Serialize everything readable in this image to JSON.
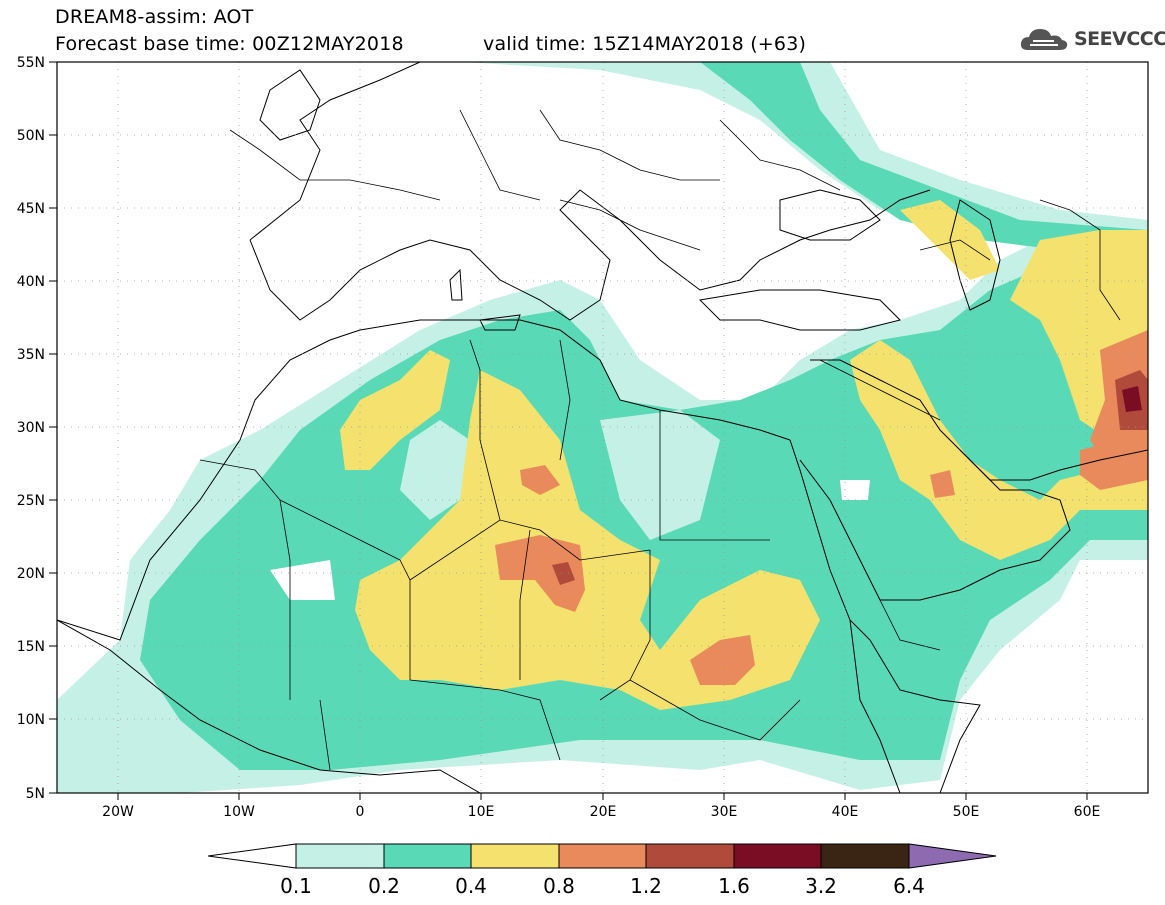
{
  "header": {
    "title": "DREAM8-assim: AOT",
    "base_time": "Forecast base time: 00Z12MAY2018",
    "valid_time": "valid time: 15Z14MAY2018 (+63)"
  },
  "logo": {
    "text": "SEEVCCC",
    "icon": "cloud-icon"
  },
  "axes": {
    "lat_labels": [
      "55N",
      "50N",
      "45N",
      "40N",
      "35N",
      "30N",
      "25N",
      "20N",
      "15N",
      "10N",
      "5N"
    ],
    "lon_labels": [
      "20W",
      "10W",
      "0",
      "10E",
      "20E",
      "30E",
      "40E",
      "50E",
      "60E"
    ],
    "lat_range": [
      5,
      55
    ],
    "lon_range": [
      -25,
      65
    ]
  },
  "colorbar": {
    "levels": [
      "0.1",
      "0.2",
      "0.4",
      "0.8",
      "1.2",
      "1.6",
      "3.2",
      "6.4"
    ],
    "colors": [
      "#ffffff",
      "#c4f0e6",
      "#5ad9b6",
      "#f5e16e",
      "#e88a5c",
      "#b04a3b",
      "#7a0d24",
      "#3a2413",
      "#8e6bb0"
    ]
  },
  "legend_colors": {
    "bg": "#ffffff",
    "c01": "#c4f0e6",
    "c02": "#5ad9b6",
    "c04": "#f5e16e",
    "c08": "#e88a5c",
    "c12": "#b04a3b",
    "c16": "#7a0d24",
    "c32": "#3a2413"
  }
}
